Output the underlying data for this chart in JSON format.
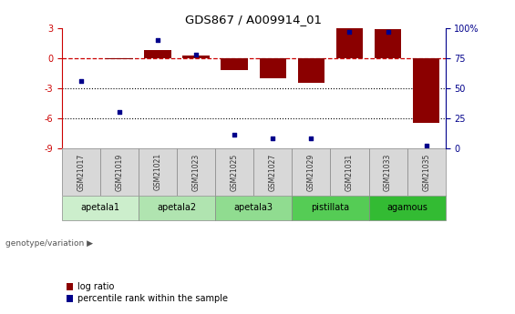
{
  "title": "GDS867 / A009914_01",
  "samples": [
    "GSM21017",
    "GSM21019",
    "GSM21021",
    "GSM21023",
    "GSM21025",
    "GSM21027",
    "GSM21029",
    "GSM21031",
    "GSM21033",
    "GSM21035"
  ],
  "log_ratio": [
    0.02,
    -0.08,
    0.85,
    0.28,
    -1.2,
    -2.05,
    -2.5,
    3.05,
    2.9,
    -6.5
  ],
  "percentile_rank": [
    56,
    30,
    90,
    78,
    11,
    8,
    8,
    97,
    97,
    2
  ],
  "groups": [
    "apetala1",
    "apetala1",
    "apetala2",
    "apetala2",
    "apetala3",
    "apetala3",
    "pistillata",
    "pistillata",
    "agamous",
    "agamous"
  ],
  "group_labels": [
    "apetala1",
    "apetala2",
    "apetala3",
    "pistillata",
    "agamous"
  ],
  "bar_color": "#8B0000",
  "point_color": "#00008B",
  "ylim_left": [
    -9,
    3
  ],
  "ylim_right": [
    0,
    100
  ],
  "yticks_left": [
    -9,
    -6,
    -3,
    0,
    3
  ],
  "yticks_right": [
    0,
    25,
    50,
    75,
    100
  ],
  "legend_log_ratio": "log ratio",
  "legend_percentile": "percentile rank within the sample",
  "genotype_label": "genotype/variation",
  "background_color": "#ffffff",
  "group_colors": [
    "#cceecc",
    "#b8e8b8",
    "#a0dfa0",
    "#66cc66",
    "#33bb33"
  ],
  "sample_box_color": "#cccccc",
  "sample_box_edge": "#888888"
}
